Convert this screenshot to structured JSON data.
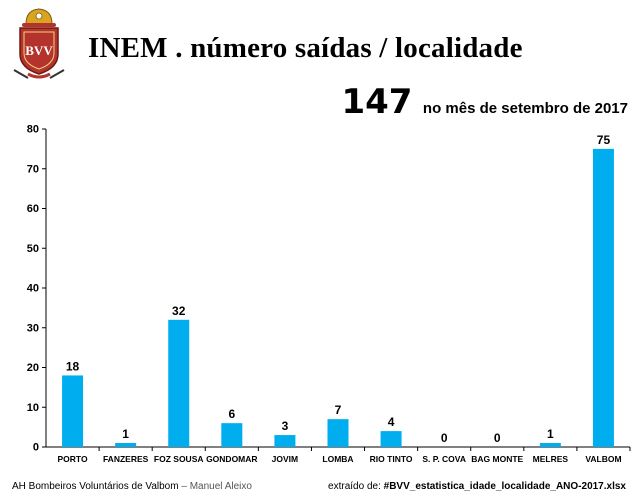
{
  "header": {
    "title": "INEM . número saídas / localidade",
    "total": "147",
    "period": "no mês de setembro de 2017"
  },
  "logo": {
    "letters": "BVV"
  },
  "chart_data": {
    "type": "bar",
    "title": "INEM . número saídas / localidade",
    "xlabel": "",
    "ylabel": "",
    "ylim": [
      0,
      80
    ],
    "yticks": [
      0,
      10,
      20,
      30,
      40,
      50,
      60,
      70,
      80
    ],
    "grid": false,
    "bar_color": "#00AEEF",
    "categories": [
      "PORTO",
      "FANZERES",
      "FOZ SOUSA",
      "GONDOMAR",
      "JOVIM",
      "LOMBA",
      "RIO TINTO",
      "S. P. COVA",
      "BAG MONTE",
      "MELRES",
      "VALBOM"
    ],
    "values": [
      18,
      1,
      32,
      6,
      3,
      7,
      4,
      0,
      0,
      1,
      75
    ]
  },
  "footer": {
    "org": "AH Bombeiros Voluntários de Valbom",
    "author": " – Manuel Aleixo",
    "source_prefix": "extraído de: ",
    "source_file": "#BVV_estatistica_idade_localidade_ANO-2017.xlsx"
  },
  "colors": {
    "bar": "#00AEEF",
    "logo_red": "#B4342D",
    "logo_gold": "#D9A520"
  }
}
